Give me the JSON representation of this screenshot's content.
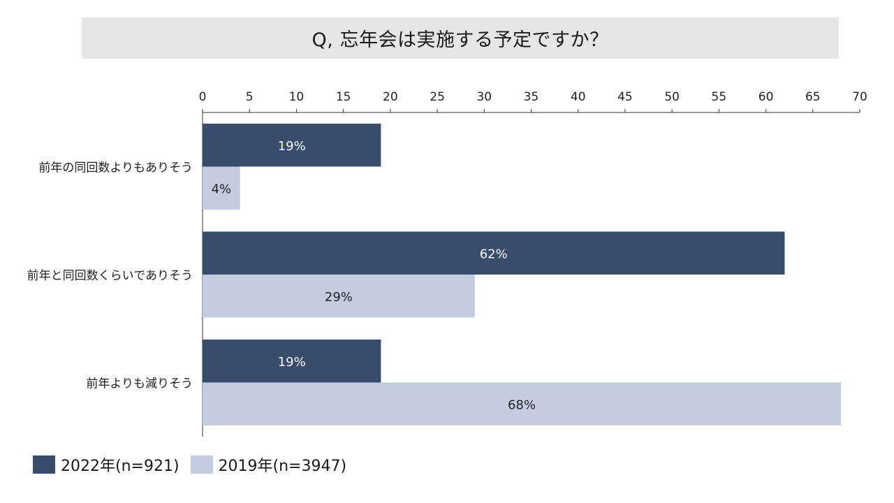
{
  "title": "Q, 忘年会は実施する予定ですか？",
  "colors": {
    "series_2022": "#374d6b",
    "series_2019": "#c3cddf",
    "axis": "#333333",
    "title_bg": "#e6e6e6"
  },
  "chart_data": {
    "type": "bar",
    "orientation": "horizontal",
    "title": "Q, 忘年会は実施する予定ですか？",
    "categories": [
      "前年の同回数よりもありそう",
      "前年と同回数くらいでありそう",
      "前年よりも減りそう"
    ],
    "series": [
      {
        "name": "2022年(n=921)",
        "values": [
          19,
          62,
          19
        ],
        "labels": [
          "19%",
          "62%",
          "19%"
        ]
      },
      {
        "name": "2019年(n=3947)",
        "values": [
          4,
          29,
          68
        ],
        "labels": [
          "4%",
          "29%",
          "68%"
        ]
      }
    ],
    "xlim": [
      0,
      70
    ],
    "xticks": [
      "0",
      "5",
      "10",
      "15",
      "20",
      "25",
      "30",
      "35",
      "40",
      "45",
      "50",
      "55",
      "60",
      "65",
      "70"
    ],
    "xaxis_position": "top",
    "legend_position": "bottom-left",
    "grid": false,
    "xlabel": "",
    "ylabel": ""
  },
  "legend": {
    "items": [
      {
        "label": "2022年(n=921)"
      },
      {
        "label": "2019年(n=3947)"
      }
    ]
  }
}
